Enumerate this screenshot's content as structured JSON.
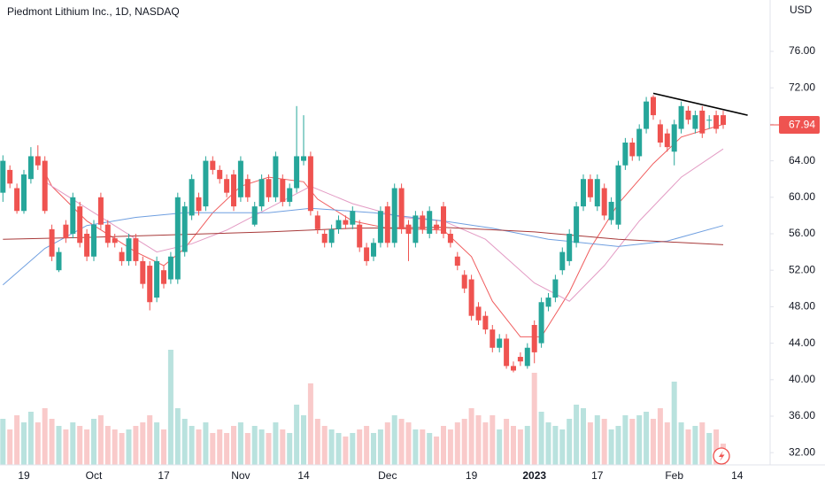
{
  "chart_data": {
    "type": "candlestick",
    "title": "Piedmont Lithium Inc., 1D, NASDAQ",
    "currency": "USD",
    "categories": [
      null,
      null,
      null,
      "19",
      null,
      null,
      null,
      null,
      null,
      null,
      null,
      null,
      null,
      "Oct",
      null,
      null,
      null,
      null,
      null,
      null,
      null,
      null,
      null,
      "17",
      null,
      null,
      null,
      null,
      null,
      null,
      null,
      null,
      null,
      null,
      "Nov",
      null,
      null,
      null,
      null,
      null,
      null,
      null,
      null,
      "14",
      null,
      null,
      null,
      null,
      null,
      null,
      null,
      null,
      null,
      null,
      null,
      "Dec",
      null,
      null,
      null,
      null,
      null,
      null,
      null,
      null,
      null,
      null,
      null,
      "19",
      null,
      null,
      null,
      null,
      null,
      null,
      null,
      null,
      "2023",
      null,
      null,
      null,
      null,
      null,
      null,
      null,
      null,
      "17",
      null,
      null,
      null,
      null,
      null,
      null,
      null,
      null,
      null,
      null,
      "Feb",
      null,
      null,
      null,
      null,
      null,
      null,
      null,
      null,
      "14"
    ],
    "open": [
      60.5,
      63,
      61,
      58.5,
      62,
      64.5,
      64,
      56.5,
      52,
      57,
      56,
      59,
      56,
      53.5,
      60,
      57,
      55.5,
      54,
      53,
      55.5,
      53,
      52.5,
      49,
      52,
      51,
      51,
      54,
      58,
      60,
      59,
      64,
      63,
      62,
      62.5,
      60,
      62,
      57,
      59,
      62,
      60,
      62,
      59.5,
      61,
      64,
      64.5,
      58,
      56,
      55,
      56.5,
      57.5,
      57,
      57,
      54.5,
      53.5,
      55,
      59,
      55,
      61,
      57,
      55,
      58,
      56,
      57,
      59,
      56,
      53.5,
      51.5,
      51,
      48,
      47,
      45.5,
      43.5,
      44.5,
      41.5,
      42.5,
      41.5,
      46,
      44,
      48,
      49,
      52,
      53,
      55,
      59,
      62,
      59,
      61,
      57.5,
      57,
      63.5,
      66,
      64.5,
      67.5,
      71,
      68,
      67,
      65,
      67.5,
      69.5,
      67.5,
      69.5,
      68.5,
      69,
      69,
      null,
      null
    ],
    "high": [
      64.6,
      63.5,
      61.5,
      63,
      65.5,
      65.7,
      64.5,
      57,
      54.5,
      57.5,
      60.5,
      59.5,
      56.5,
      57.5,
      60.5,
      57.5,
      56,
      54.5,
      56,
      56,
      53.5,
      53,
      53.5,
      52.5,
      54,
      60.5,
      59.5,
      62.5,
      60.5,
      64.5,
      64.5,
      63.5,
      62.5,
      63,
      64.5,
      62.5,
      59.5,
      62.5,
      62.5,
      65,
      62.5,
      61.5,
      70,
      69,
      65,
      58.5,
      56.5,
      57,
      58,
      58,
      59,
      57.5,
      55,
      55.5,
      59,
      59.5,
      61.5,
      61.5,
      57.5,
      58.5,
      58.5,
      59,
      57.5,
      59.5,
      56.5,
      54,
      52,
      51.5,
      48.5,
      47.5,
      46,
      45,
      45,
      42,
      43,
      44,
      46.5,
      49,
      49.5,
      51.5,
      54.5,
      56.5,
      59.5,
      62.5,
      62.5,
      62.5,
      61.5,
      60,
      64,
      66.5,
      66.5,
      68,
      71,
      71.2,
      68.5,
      67.5,
      68.5,
      70.5,
      70,
      69.5,
      70,
      69,
      69.5,
      69.5,
      null,
      null
    ],
    "low": [
      59.5,
      61,
      58.2,
      58.2,
      61.5,
      63,
      58.2,
      53,
      51.8,
      55,
      55.5,
      54.5,
      53,
      53,
      56.5,
      54.5,
      54.5,
      52.5,
      52.5,
      52.5,
      50,
      47.6,
      48.5,
      50,
      50.5,
      50.5,
      53.5,
      57.5,
      58,
      58.5,
      62.5,
      61.5,
      60,
      58.5,
      59.5,
      59.5,
      56.8,
      58.5,
      59.5,
      59.5,
      59,
      59,
      60.5,
      63.5,
      58,
      56,
      54.5,
      54.5,
      56,
      56.5,
      56.5,
      54,
      52.5,
      53,
      54.5,
      54.5,
      54.5,
      56,
      53,
      54.5,
      56,
      55.5,
      56,
      55.5,
      54.5,
      52,
      49.5,
      46.5,
      46,
      45,
      43,
      43,
      41.2,
      40.8,
      41.5,
      41.2,
      41.8,
      43.5,
      47.5,
      48.5,
      51.5,
      52.5,
      54.5,
      58.5,
      59.5,
      58.5,
      57.5,
      57,
      56.5,
      63,
      64,
      64,
      67,
      68.5,
      65.5,
      65,
      63.5,
      67,
      68,
      67,
      66.5,
      67.5,
      67,
      67.5,
      null,
      null
    ],
    "close": [
      64,
      61.5,
      58.5,
      62.5,
      64.5,
      63.5,
      58.5,
      53.5,
      54,
      55.5,
      60,
      55,
      53.5,
      57,
      57,
      55,
      55,
      53,
      55.5,
      53,
      50.5,
      48.5,
      53,
      50.5,
      53.5,
      60,
      59,
      62,
      58.5,
      64,
      63,
      62,
      60.5,
      59,
      64,
      60,
      59,
      62,
      60,
      64.5,
      59.5,
      61,
      64.5,
      64.5,
      58.5,
      56.5,
      55,
      56.5,
      57.5,
      57,
      58.5,
      54.5,
      53,
      55,
      58.5,
      55,
      61,
      56.5,
      56,
      58,
      56.5,
      58.5,
      56.5,
      56,
      55,
      52.5,
      50,
      47,
      46.5,
      45.5,
      43.5,
      44.5,
      41.5,
      41,
      42,
      43.5,
      43,
      48.5,
      49,
      51,
      54,
      56,
      59,
      62,
      60,
      62,
      58,
      59.5,
      63.5,
      66,
      64.5,
      67.5,
      70.5,
      69,
      66,
      65.5,
      68,
      70,
      68.5,
      69,
      67,
      68.5,
      67.5,
      67.94,
      null,
      null
    ],
    "volume": [
      1.3,
      1.0,
      1.4,
      1.2,
      1.5,
      1.2,
      1.6,
      1.3,
      1.1,
      1.0,
      1.2,
      1.1,
      1.0,
      1.3,
      1.4,
      1.1,
      1.0,
      0.9,
      1.0,
      1.1,
      1.2,
      1.4,
      1.2,
      1.0,
      3.25,
      1.6,
      1.3,
      1.1,
      1.0,
      1.2,
      0.9,
      1.0,
      0.9,
      1.1,
      1.2,
      0.9,
      1.1,
      1.0,
      0.9,
      1.2,
      1.0,
      0.9,
      1.7,
      1.4,
      2.3,
      1.3,
      1.1,
      1.0,
      0.9,
      0.8,
      0.9,
      1.0,
      1.1,
      0.9,
      1.0,
      1.2,
      1.4,
      1.3,
      1.2,
      1.0,
      1.0,
      0.9,
      0.8,
      1.1,
      1.0,
      1.2,
      1.3,
      1.6,
      1.4,
      1.2,
      1.4,
      1.0,
      1.3,
      1.1,
      1.0,
      1.1,
      2.6,
      1.5,
      1.2,
      1.1,
      1.0,
      1.3,
      1.7,
      1.6,
      1.2,
      1.4,
      1.3,
      1.0,
      1.1,
      1.4,
      1.3,
      1.4,
      1.5,
      1.3,
      1.6,
      1.2,
      2.35,
      1.2,
      1.0,
      1.1,
      1.2,
      0.9,
      1.0,
      0.6,
      null,
      null
    ],
    "ylim": [
      31,
      81
    ],
    "yticks": [
      {
        "value": 32,
        "label": "32.00"
      },
      {
        "value": 36,
        "label": "36.00"
      },
      {
        "value": 40,
        "label": "40.00"
      },
      {
        "value": 44,
        "label": "44.00"
      },
      {
        "value": 48,
        "label": "48.00"
      },
      {
        "value": 52,
        "label": "52.00"
      },
      {
        "value": 56,
        "label": "56.00"
      },
      {
        "value": 60,
        "label": "60.00"
      },
      {
        "value": 64,
        "label": "64.00"
      },
      {
        "value": 68,
        "label": "68.00"
      },
      {
        "value": 72,
        "label": "72.00"
      },
      {
        "value": 76,
        "label": "76.00"
      }
    ],
    "volume_lim": [
      0,
      4
    ],
    "up_color": "#26a69a",
    "down_color": "#ef5350",
    "up_volume_color": "#b9e2de",
    "down_volume_color": "#f9caca",
    "moving_averages": [
      {
        "color": "#f05d5e",
        "x": [
          6,
          7,
          12,
          19,
          23,
          26,
          30,
          34,
          38,
          43,
          45,
          50,
          55,
          63,
          67,
          70,
          74,
          77,
          81,
          84,
          88,
          93,
          97,
          103
        ],
        "values": [
          62.7,
          61.2,
          57.4,
          54,
          52.5,
          54.4,
          58.3,
          61.2,
          62.2,
          61.7,
          59.8,
          57.4,
          56.6,
          56.4,
          53.5,
          48.6,
          44.7,
          44.7,
          49.6,
          54.4,
          59.3,
          63.7,
          66.6,
          68
        ]
      },
      {
        "color": "#e39bc4",
        "x": [
          6,
          12,
          17,
          22,
          27,
          32,
          38,
          44,
          50,
          57,
          63,
          69,
          76,
          81,
          86,
          91,
          97,
          103
        ],
        "values": [
          61.7,
          58.8,
          56.4,
          54,
          54.9,
          56.4,
          58.8,
          61.2,
          59.3,
          57.8,
          57.4,
          55.4,
          50.6,
          48.6,
          52.5,
          57.4,
          62.2,
          65.3
        ]
      },
      {
        "color": "#6f9fe0",
        "x": [
          0,
          6,
          12,
          19,
          26,
          38,
          44,
          53,
          63,
          70,
          78,
          88,
          95,
          103
        ],
        "values": [
          50.4,
          54.4,
          56.9,
          57.8,
          58.3,
          58.3,
          58.8,
          58.3,
          57.4,
          56.6,
          55.4,
          54.6,
          55.2,
          56.9
        ]
      },
      {
        "color": "#a83a3a",
        "x": [
          0,
          12,
          25,
          38,
          50,
          63,
          76,
          88,
          103
        ],
        "values": [
          55.4,
          55.6,
          55.9,
          56.2,
          56.6,
          56.7,
          56.2,
          55.4,
          54.8
        ]
      }
    ],
    "trend_line": {
      "color": "#000000",
      "x": [
        93,
        106.5
      ],
      "values": [
        71.4,
        69
      ]
    }
  }
}
